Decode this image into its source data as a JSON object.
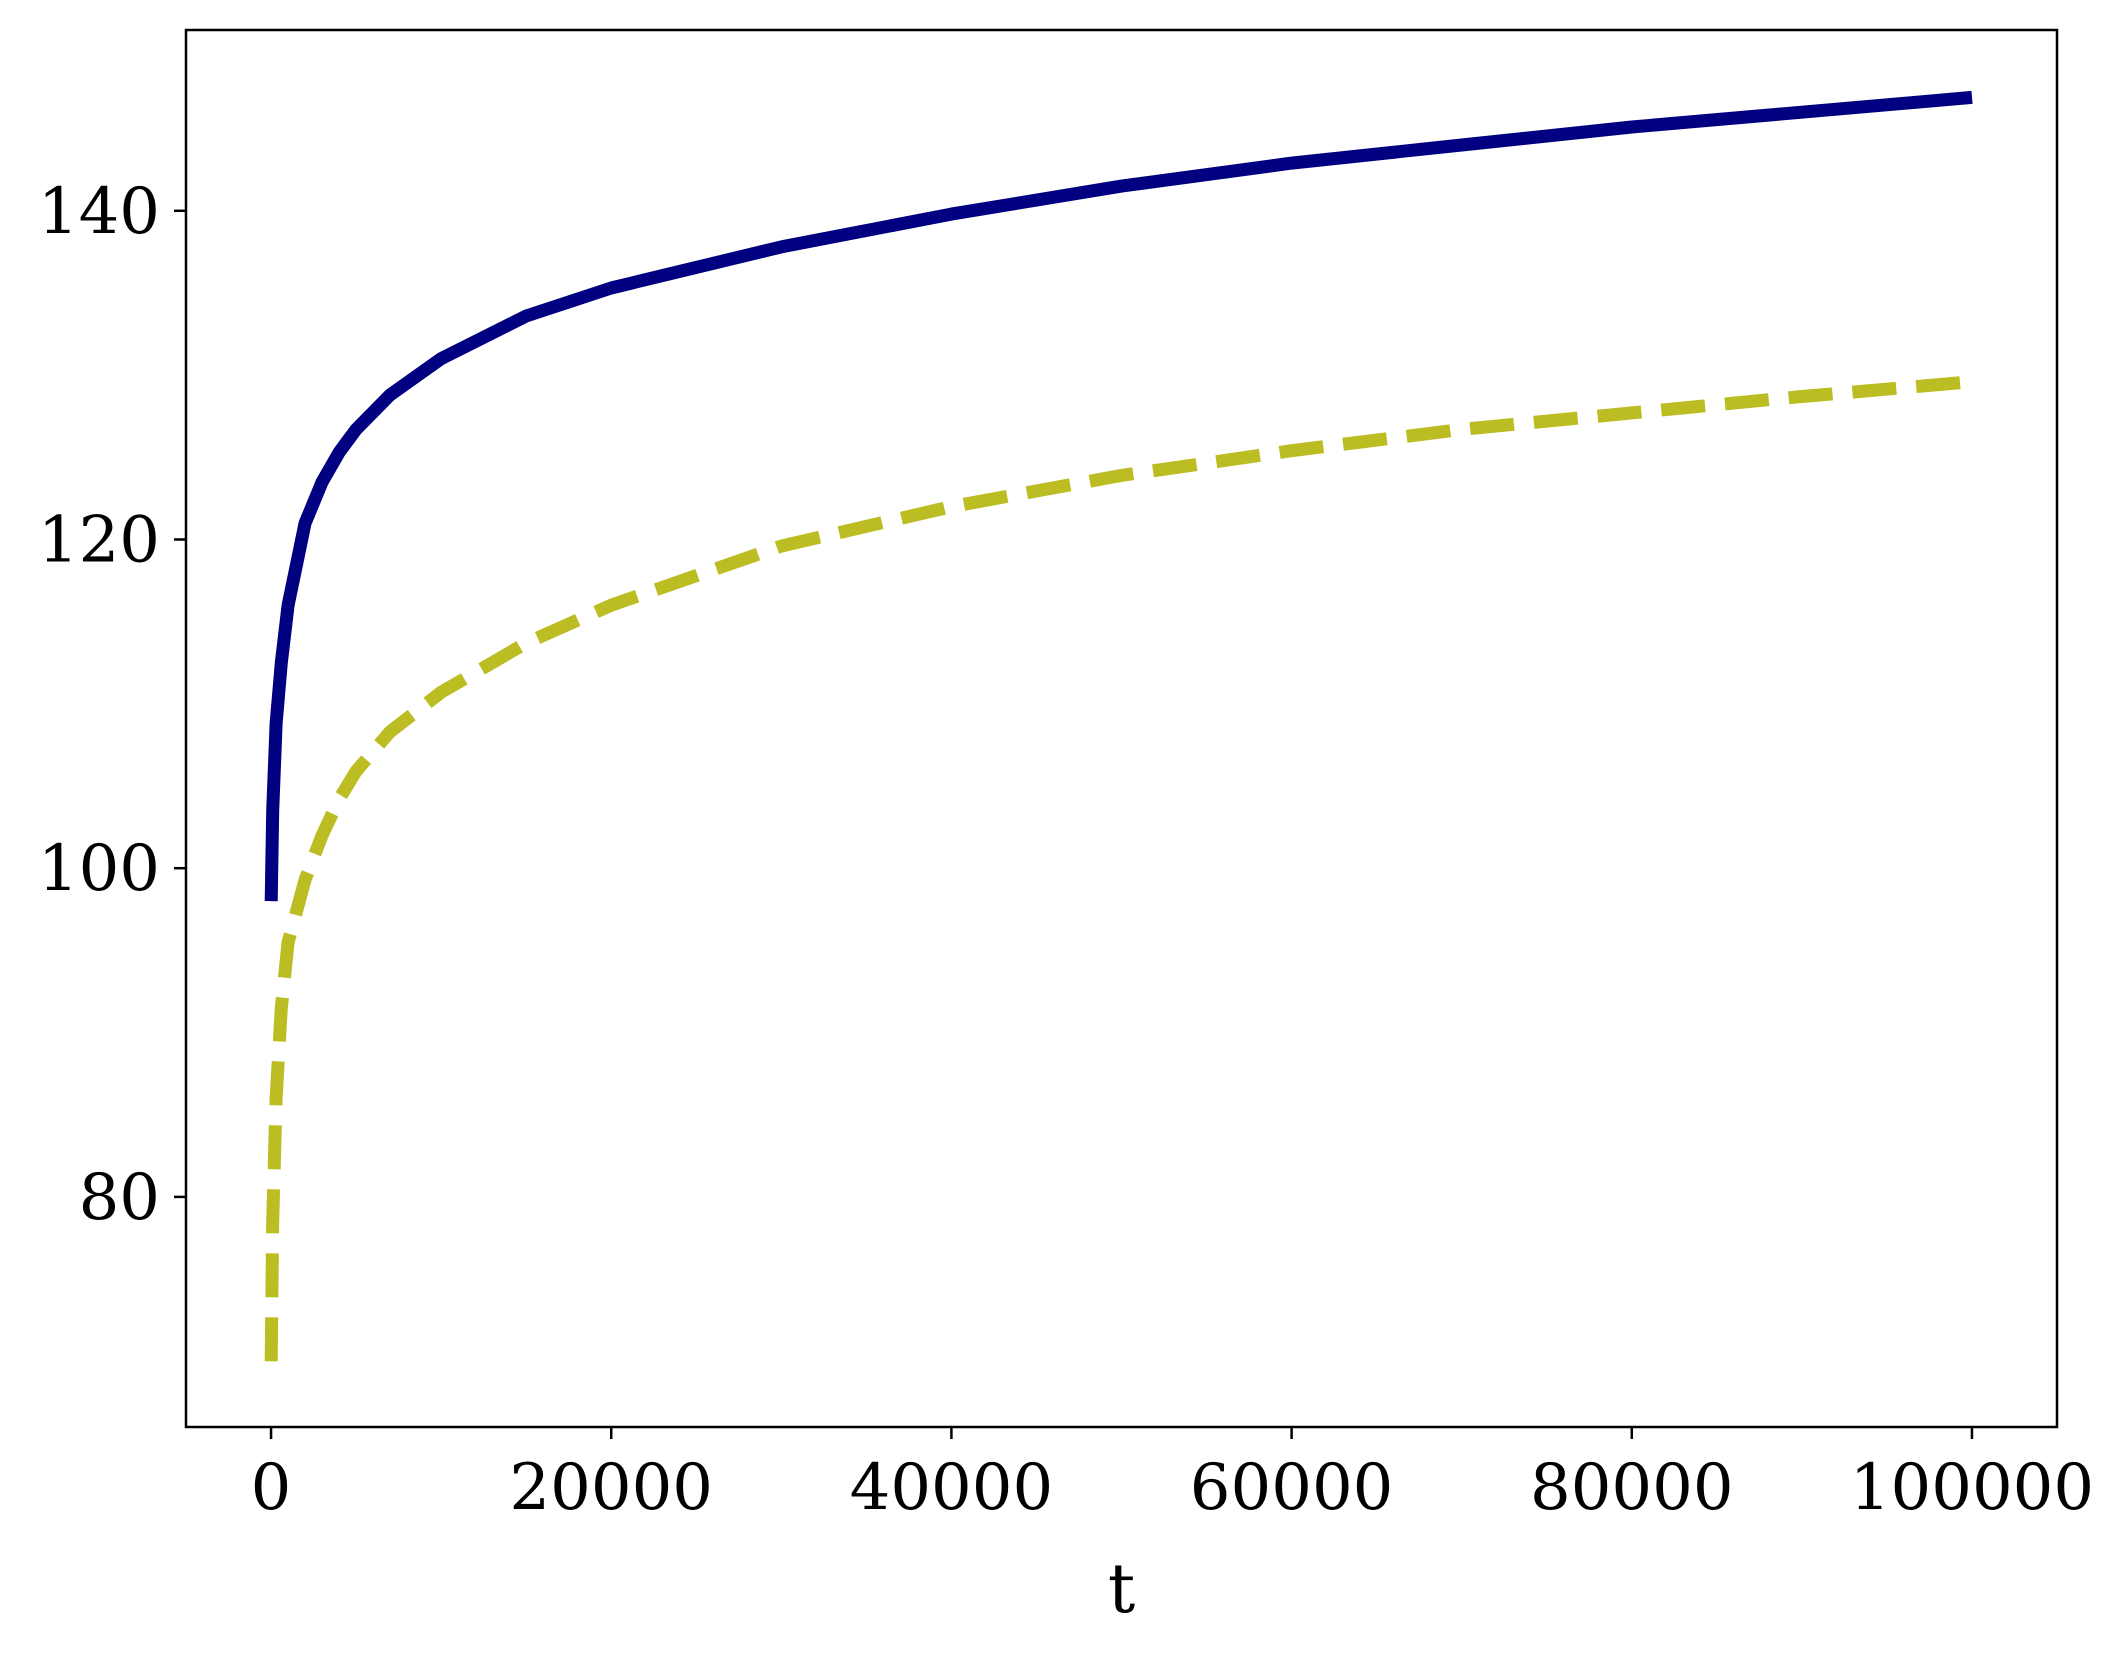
{
  "chart_data": {
    "type": "line",
    "title": "",
    "xlabel": "t",
    "ylabel": "",
    "xlim": [
      -5000,
      105000
    ],
    "ylim": [
      66,
      151
    ],
    "grid": false,
    "legend": "none",
    "xticks": [
      0,
      20000,
      40000,
      60000,
      80000,
      100000
    ],
    "xtick_labels": [
      "0",
      "20000",
      "40000",
      "60000",
      "80000",
      "100000"
    ],
    "yticks": [
      80,
      100,
      120,
      140
    ],
    "ytick_labels": [
      "80",
      "100",
      "120",
      "140"
    ],
    "series": [
      {
        "style": "solid",
        "color": "#000080",
        "x": [
          10,
          100,
          300,
          600,
          1000,
          2000,
          3000,
          4000,
          5000,
          7000,
          10000,
          15000,
          20000,
          30000,
          40000,
          50000,
          60000,
          70000,
          80000,
          90000,
          100000
        ],
        "y": [
          98.0,
          103.5,
          108.8,
          112.5,
          116.0,
          121.0,
          123.5,
          125.3,
          126.7,
          128.8,
          131.0,
          133.6,
          135.3,
          137.8,
          139.8,
          141.5,
          142.9,
          144.0,
          145.1,
          146.0,
          146.9
        ]
      },
      {
        "style": "dashed",
        "color": "#bcbd22",
        "x": [
          10,
          100,
          300,
          600,
          1000,
          2000,
          3000,
          4000,
          5000,
          7000,
          10000,
          15000,
          20000,
          30000,
          40000,
          50000,
          60000,
          70000,
          80000,
          90000,
          100000
        ],
        "y": [
          70.0,
          78.5,
          86.0,
          91.5,
          95.5,
          99.3,
          102.0,
          104.2,
          105.9,
          108.3,
          110.7,
          113.7,
          116.0,
          119.6,
          122.0,
          123.9,
          125.4,
          126.7,
          127.7,
          128.7,
          129.6
        ]
      }
    ]
  }
}
